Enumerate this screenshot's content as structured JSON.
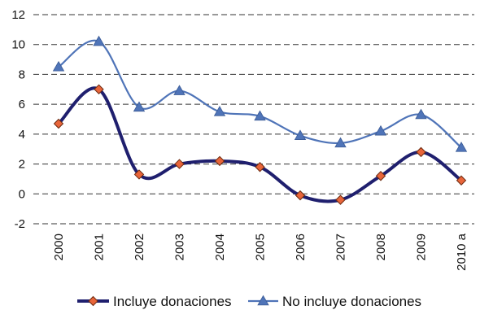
{
  "chart_data": {
    "type": "line",
    "categories": [
      "2000",
      "2001",
      "2002",
      "2003",
      "2004",
      "2005",
      "2006",
      "2007",
      "2008",
      "2009",
      "2010 a"
    ],
    "ylim": [
      -2,
      12
    ],
    "yticks": [
      -2,
      0,
      2,
      4,
      6,
      8,
      10,
      12
    ],
    "grid": "horizontal-dashed",
    "legend_position": "bottom",
    "series": [
      {
        "name": "Incluye donaciones",
        "values": [
          4.7,
          7.0,
          1.3,
          2.0,
          2.2,
          1.8,
          -0.1,
          -0.4,
          1.2,
          2.8,
          0.9
        ],
        "line_color": "#1f1f6e",
        "marker_color": "#e8653a",
        "marker": "diamond"
      },
      {
        "name": "No incluye donaciones",
        "values": [
          8.5,
          10.2,
          5.8,
          6.9,
          5.5,
          5.2,
          3.9,
          3.4,
          4.2,
          5.3,
          3.1
        ],
        "line_color": "#4f74b8",
        "marker_color": "#4f74b8",
        "marker": "triangle"
      }
    ]
  }
}
